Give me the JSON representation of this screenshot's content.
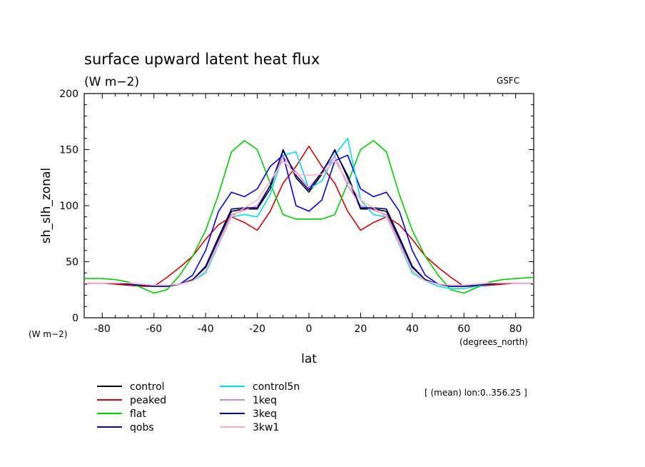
{
  "chart_data": {
    "type": "line",
    "title": "surface upward latent heat flux",
    "subtitle": "(W m−2)",
    "source_label": "GSFC",
    "xlabel": "lat",
    "ylabel": "sh_slh_zonal",
    "y_unit_label": "(W m−2)",
    "x_unit_label": "(degrees_north)",
    "xlim": [
      -87,
      87
    ],
    "ylim": [
      0,
      200
    ],
    "xticks": [
      -80,
      -60,
      -40,
      -20,
      0,
      20,
      40,
      60,
      80
    ],
    "yticks": [
      0,
      50,
      100,
      150,
      200
    ],
    "note": "[ (mean) lon:0..356.25 ]",
    "legend_position": "bottom-left",
    "x": [
      -87,
      -80,
      -75,
      -70,
      -65,
      -60,
      -55,
      -50,
      -45,
      -40,
      -35,
      -30,
      -25,
      -20,
      -15,
      -10,
      -5,
      0,
      5,
      10,
      15,
      20,
      25,
      30,
      35,
      40,
      45,
      50,
      55,
      60,
      65,
      70,
      75,
      80,
      87
    ],
    "series": [
      {
        "name": "control",
        "color": "#000000",
        "values": [
          31,
          31,
          31,
          30,
          29,
          28,
          28,
          30,
          34,
          45,
          70,
          95,
          97,
          97,
          115,
          150,
          125,
          112,
          128,
          150,
          125,
          97,
          97,
          95,
          70,
          45,
          34,
          30,
          28,
          28,
          29,
          30,
          31,
          31,
          31
        ]
      },
      {
        "name": "peaked",
        "color": "#e00000",
        "values": [
          31,
          31,
          30,
          29,
          28,
          28,
          36,
          45,
          55,
          70,
          83,
          90,
          85,
          78,
          95,
          120,
          135,
          153,
          135,
          120,
          95,
          78,
          85,
          90,
          83,
          70,
          55,
          45,
          36,
          28,
          28,
          29,
          30,
          31,
          31
        ]
      },
      {
        "name": "flat",
        "color": "#00d000",
        "values": [
          35,
          35,
          34,
          32,
          27,
          22,
          25,
          38,
          55,
          78,
          110,
          148,
          158,
          150,
          120,
          92,
          88,
          88,
          88,
          92,
          120,
          150,
          158,
          148,
          110,
          78,
          55,
          38,
          25,
          22,
          27,
          32,
          34,
          35,
          36
        ]
      },
      {
        "name": "qobs",
        "color": "#0000ee",
        "values": [
          31,
          31,
          31,
          30,
          29,
          28,
          28,
          30,
          38,
          60,
          95,
          112,
          108,
          115,
          135,
          145,
          100,
          95,
          105,
          140,
          145,
          115,
          108,
          112,
          95,
          60,
          38,
          30,
          28,
          28,
          29,
          30,
          31,
          31,
          31
        ]
      },
      {
        "name": "control5n",
        "color": "#00e0ee",
        "values": [
          31,
          31,
          31,
          30,
          29,
          28,
          28,
          30,
          33,
          40,
          65,
          90,
          92,
          90,
          110,
          145,
          148,
          115,
          122,
          145,
          160,
          105,
          92,
          90,
          65,
          40,
          33,
          28,
          26,
          26,
          28,
          30,
          31,
          31,
          31
        ]
      },
      {
        "name": "1keq",
        "color": "#cc88dd",
        "values": [
          31,
          31,
          31,
          31,
          30,
          29,
          29,
          30,
          33,
          42,
          68,
          92,
          96,
          100,
          118,
          144,
          130,
          116,
          130,
          144,
          118,
          100,
          96,
          92,
          68,
          42,
          33,
          30,
          29,
          29,
          30,
          31,
          31,
          31,
          31
        ]
      },
      {
        "name": "3keq",
        "color": "#000080",
        "values": [
          31,
          31,
          31,
          30,
          29,
          28,
          28,
          30,
          34,
          46,
          72,
          97,
          98,
          98,
          118,
          149,
          127,
          114,
          130,
          149,
          127,
          98,
          98,
          97,
          72,
          46,
          34,
          30,
          28,
          28,
          29,
          30,
          31,
          31,
          31
        ]
      },
      {
        "name": "3kw1",
        "color": "#ffb0c0",
        "values": [
          31,
          31,
          31,
          31,
          30,
          29,
          29,
          30,
          33,
          42,
          66,
          90,
          98,
          105,
          122,
          140,
          128,
          127,
          128,
          140,
          122,
          105,
          98,
          90,
          66,
          42,
          33,
          30,
          29,
          29,
          30,
          31,
          31,
          31,
          31
        ]
      }
    ]
  }
}
